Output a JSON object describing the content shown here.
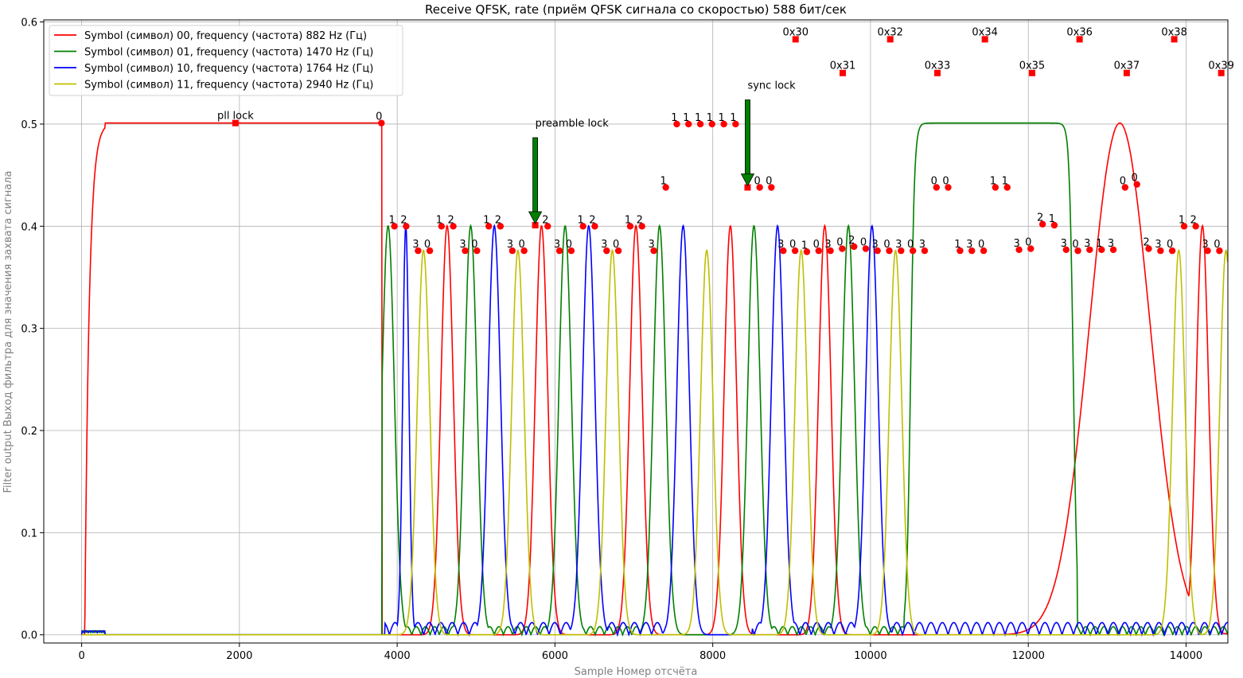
{
  "chart_data": {
    "type": "line",
    "title": "Receive QFSK, rate (приём QFSK сигнала со скоростью) 588 бит/сек",
    "xlabel": "Sample Номер отсчёта",
    "ylabel": "Filter output Выход фильтра для значения захвата сигнала",
    "xlim": [
      -480,
      14530
    ],
    "ylim": [
      -0.008,
      0.602
    ],
    "xticks": [
      0,
      2000,
      4000,
      6000,
      8000,
      10000,
      12000,
      14000
    ],
    "xtick_labels": [
      "0",
      "2000",
      "4000",
      "6000",
      "8000",
      "10000",
      "12000",
      "14000"
    ],
    "yticks": [
      0.0,
      0.1,
      0.2,
      0.3,
      0.4,
      0.5,
      0.6
    ],
    "ytick_labels": [
      "0.0",
      "0.1",
      "0.2",
      "0.3",
      "0.4",
      "0.5",
      "0.6"
    ],
    "grid": true,
    "legend_position": "top-left",
    "series": [
      {
        "name": "Symbol (символ) 00, frequency (частота) 882 Hz (Гц)",
        "color": "#ff0000",
        "symbol": 0
      },
      {
        "name": "Symbol (символ) 01, frequency (частота) 1470 Hz (Гц)",
        "color": "#008000",
        "symbol": 1
      },
      {
        "name": "Symbol (символ) 10, frequency (частота) 1764 Hz (Гц)",
        "color": "#0000ff",
        "symbol": 2
      },
      {
        "name": "Symbol (символ)  11, frequency (частота) 2940 Hz (Гц)",
        "color": "#bfbf00",
        "symbol": 3
      }
    ],
    "symbol_sequence": [
      0,
      0,
      0,
      0,
      0,
      0,
      0,
      0,
      0,
      0,
      0,
      0,
      0,
      0,
      0,
      0,
      0,
      0,
      0,
      0,
      0,
      0,
      0,
      0,
      0,
      1,
      1,
      2,
      3,
      3,
      0,
      0,
      1,
      1,
      2,
      2,
      3,
      3,
      0,
      0,
      1,
      1,
      2,
      2,
      3,
      3,
      0,
      0,
      1,
      1,
      2,
      2,
      3,
      3,
      0,
      0,
      1,
      1,
      2,
      2,
      3,
      3,
      0,
      0,
      1,
      1,
      2,
      2,
      3,
      3,
      1,
      1,
      1,
      1,
      1,
      1,
      1,
      1,
      1,
      1,
      1,
      1,
      1,
      1,
      0,
      0,
      0,
      0,
      0,
      0,
      0,
      0,
      3,
      3,
      0,
      0,
      3,
      3,
      0,
      0,
      3,
      3,
      0,
      0,
      3,
      3,
      0,
      0,
      3,
      3,
      2,
      2,
      0,
      0,
      3,
      3,
      0,
      0,
      3,
      3,
      0,
      0,
      3,
      3,
      0,
      0,
      3,
      3,
      0,
      0,
      0,
      0,
      1,
      1,
      3,
      3,
      0,
      0,
      1,
      1,
      1,
      1,
      3,
      3,
      0,
      0,
      2,
      2,
      1,
      1,
      3,
      3,
      0,
      0,
      3,
      3,
      1,
      1,
      3,
      3,
      0,
      0,
      0,
      0,
      2,
      2,
      3,
      3,
      0,
      0,
      1,
      1,
      2,
      2,
      3,
      3,
      0,
      0,
      0,
      0
    ],
    "markers": {
      "circle_x": [
        3800,
        3965,
        4114,
        4265,
        4413,
        4562,
        4711,
        4862,
        5011,
        5161,
        5309,
        5460,
        5609,
        5908,
        6057,
        6207,
        6356,
        6505,
        6655,
        6804,
        6954,
        7103,
        7253,
        7405,
        7544,
        7693,
        7843,
        7991,
        8141,
        8290,
        8595,
        8743,
        8894,
        9044,
        9193,
        9343,
        9492,
        9641,
        9791,
        9940,
        10088,
        10238,
        10387,
        10537,
        10686,
        10836,
        10984,
        11135,
        11284,
        11434,
        11583,
        11733,
        11883,
        12031,
        12181,
        12330,
        12480,
        12629,
        12778,
        12929,
        13078,
        13227,
        13377,
        13526,
        13676,
        13825,
        13975,
        14123,
        14273,
        14423
      ],
      "circle_y": [
        0.501,
        0.4,
        0.4,
        0.376,
        0.376,
        0.4,
        0.4,
        0.376,
        0.376,
        0.4,
        0.4,
        0.376,
        0.376,
        0.4,
        0.376,
        0.376,
        0.4,
        0.4,
        0.376,
        0.376,
        0.4,
        0.4,
        0.376,
        0.438,
        0.5,
        0.5,
        0.5,
        0.5,
        0.5,
        0.5,
        0.438,
        0.438,
        0.376,
        0.376,
        0.375,
        0.376,
        0.376,
        0.378,
        0.38,
        0.378,
        0.376,
        0.376,
        0.376,
        0.376,
        0.376,
        0.438,
        0.438,
        0.376,
        0.376,
        0.376,
        0.438,
        0.438,
        0.377,
        0.378,
        0.402,
        0.401,
        0.377,
        0.376,
        0.377,
        0.377,
        0.377,
        0.438,
        0.441,
        0.378,
        0.376,
        0.376,
        0.4,
        0.4,
        0.376,
        0.376
      ],
      "circle_labels": [
        "0",
        "1",
        "2",
        "3",
        "0",
        "1",
        "2",
        "3",
        "0",
        "1",
        "2",
        "3",
        "0",
        "2",
        "3",
        "0",
        "1",
        "2",
        "3",
        "0",
        "1",
        "2",
        "3",
        "1",
        "1",
        "1",
        "1",
        "1",
        "1",
        "1",
        "0",
        "0",
        "3",
        "0",
        "1",
        "0",
        "3",
        "0",
        "2",
        "0",
        "3",
        "0",
        "3",
        "0",
        "3",
        "0",
        "0",
        "1",
        "3",
        "0",
        "1",
        "1",
        "3",
        "0",
        "2",
        "1",
        "3",
        "0",
        "3",
        "1",
        "3",
        "0",
        "0",
        "2",
        "3",
        "0",
        "1",
        "2",
        "3",
        "0"
      ],
      "square_x": [
        1950,
        5750,
        8442,
        9050,
        9648,
        10250,
        10848,
        11450,
        12048,
        12650,
        13248,
        13850,
        14446
      ],
      "square_y": [
        0.501,
        0.401,
        0.438,
        0.583,
        0.55,
        0.583,
        0.55,
        0.583,
        0.55,
        0.583,
        0.55,
        0.583,
        0.55
      ],
      "square_labels": [
        "pll lock",
        "",
        "",
        "0x30",
        "0x31",
        "0x32",
        "0x33",
        "0x34",
        "0x35",
        "0x36",
        "0x37",
        "0x38",
        "0x39"
      ]
    },
    "annotations": [
      {
        "text": "preamble lock",
        "x": 5750,
        "y": 0.401,
        "arrow": true,
        "arrow_color": "#008000"
      },
      {
        "text": "sync lock",
        "x": 8442,
        "y": 0.438,
        "arrow": true,
        "arrow_color": "#008000"
      }
    ]
  }
}
